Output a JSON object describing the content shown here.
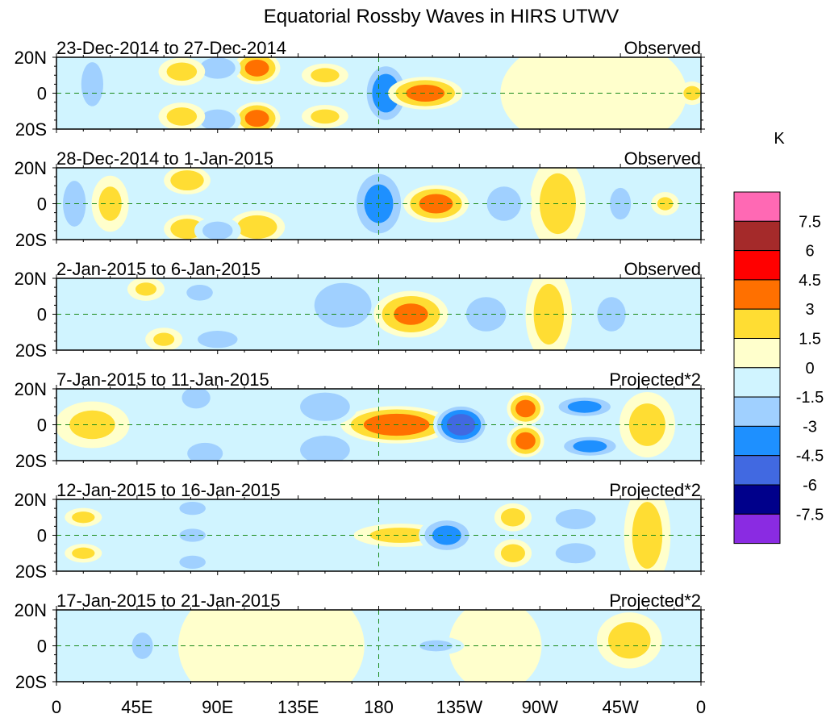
{
  "chart_data": {
    "type": "heatmap",
    "title": "Equatorial Rossby Waves in HIRS UTWV",
    "xlabel": "",
    "ylabel": "",
    "x_ticks": [
      "0",
      "45E",
      "90E",
      "135E",
      "180",
      "135W",
      "90W",
      "45W",
      "0"
    ],
    "x_tick_values": [
      0,
      45,
      90,
      135,
      180,
      225,
      270,
      315,
      360
    ],
    "xlim": [
      0,
      360
    ],
    "y_ticks": [
      "20N",
      "0",
      "20S"
    ],
    "y_tick_values": [
      20,
      0,
      -20
    ],
    "ylim": [
      -20,
      20
    ],
    "reference_lines": {
      "equator_lat": 0,
      "dateline_lon": 180
    },
    "colorbar": {
      "unit": "K",
      "levels": [
        "7.5",
        "6",
        "4.5",
        "3",
        "1.5",
        "0",
        "-1.5",
        "-3",
        "-4.5",
        "-6",
        "-7.5"
      ],
      "colors": [
        "#ff69b4",
        "#a52a2a",
        "#ff0000",
        "#ff7000",
        "#ffdd33",
        "#ffffcc",
        "#d0f4ff",
        "#a0d0ff",
        "#1e90ff",
        "#4169e1",
        "#00008b",
        "#8a2be2"
      ]
    },
    "panels": [
      {
        "date_range": "23-Dec-2014 to 27-Dec-2014",
        "type_label": "Observed",
        "anomalies": [
          {
            "lon": 206,
            "lat": 0,
            "value": 3.5,
            "sx": 16,
            "sy": 7
          },
          {
            "lon": 184,
            "lat": 0,
            "value": -4,
            "sx": 10,
            "sy": 14
          },
          {
            "lon": 112,
            "lat": 14,
            "value": 3.5,
            "sx": 10,
            "sy": 7
          },
          {
            "lon": 112,
            "lat": -14,
            "value": 3.5,
            "sx": 10,
            "sy": 7
          },
          {
            "lon": 90,
            "lat": -15,
            "value": -3,
            "sx": 10,
            "sy": 6
          },
          {
            "lon": 90,
            "lat": 14,
            "value": -3,
            "sx": 10,
            "sy": 6
          },
          {
            "lon": 70,
            "lat": 12,
            "value": 2,
            "sx": 10,
            "sy": 6
          },
          {
            "lon": 70,
            "lat": -13,
            "value": 2,
            "sx": 10,
            "sy": 6
          },
          {
            "lon": 20,
            "lat": 5,
            "value": -1.7,
            "sx": 8,
            "sy": 16
          },
          {
            "lon": 150,
            "lat": 10,
            "value": 1.8,
            "sx": 10,
            "sy": 5
          },
          {
            "lon": 150,
            "lat": -13,
            "value": 1.8,
            "sx": 10,
            "sy": 5
          },
          {
            "lon": 355,
            "lat": 0,
            "value": 1.8,
            "sx": 6,
            "sy": 5
          },
          {
            "lon": 300,
            "lat": 0,
            "value": 0.5,
            "sx": 40,
            "sy": 25
          }
        ]
      },
      {
        "date_range": "28-Dec-2014 to 1-Jan-2015",
        "type_label": "Observed",
        "anomalies": [
          {
            "lon": 212,
            "lat": 0,
            "value": 3.5,
            "sx": 14,
            "sy": 8
          },
          {
            "lon": 180,
            "lat": 0,
            "value": -3.5,
            "sx": 12,
            "sy": 16
          },
          {
            "lon": 280,
            "lat": 0,
            "value": 2,
            "sx": 12,
            "sy": 20
          },
          {
            "lon": 250,
            "lat": 0,
            "value": -1.8,
            "sx": 12,
            "sy": 12
          },
          {
            "lon": 112,
            "lat": -13,
            "value": 2.5,
            "sx": 12,
            "sy": 7
          },
          {
            "lon": 73,
            "lat": 13,
            "value": 2.5,
            "sx": 10,
            "sy": 6
          },
          {
            "lon": 73,
            "lat": -14,
            "value": 2.5,
            "sx": 10,
            "sy": 6
          },
          {
            "lon": 90,
            "lat": -15,
            "value": -2,
            "sx": 10,
            "sy": 6
          },
          {
            "lon": 30,
            "lat": 0,
            "value": 1.8,
            "sx": 8,
            "sy": 12
          },
          {
            "lon": 10,
            "lat": 0,
            "value": -1.8,
            "sx": 8,
            "sy": 16
          },
          {
            "lon": 315,
            "lat": 0,
            "value": -1.6,
            "sx": 8,
            "sy": 12
          },
          {
            "lon": 340,
            "lat": 0,
            "value": 1.6,
            "sx": 6,
            "sy": 5
          }
        ]
      },
      {
        "date_range": "2-Jan-2015 to 6-Jan-2015",
        "type_label": "Observed",
        "anomalies": [
          {
            "lon": 198,
            "lat": 0,
            "value": 3.2,
            "sx": 16,
            "sy": 10
          },
          {
            "lon": 160,
            "lat": 5,
            "value": -2.2,
            "sx": 18,
            "sy": 14
          },
          {
            "lon": 240,
            "lat": 0,
            "value": -1.8,
            "sx": 14,
            "sy": 12
          },
          {
            "lon": 275,
            "lat": 0,
            "value": 2,
            "sx": 10,
            "sy": 20
          },
          {
            "lon": 310,
            "lat": 0,
            "value": -1.8,
            "sx": 10,
            "sy": 12
          },
          {
            "lon": 90,
            "lat": -14,
            "value": -1.8,
            "sx": 14,
            "sy": 6
          },
          {
            "lon": 80,
            "lat": 12,
            "value": -1.6,
            "sx": 10,
            "sy": 6
          },
          {
            "lon": 50,
            "lat": 14,
            "value": 1.6,
            "sx": 8,
            "sy": 5
          },
          {
            "lon": 60,
            "lat": -14,
            "value": 1.6,
            "sx": 8,
            "sy": 5
          }
        ]
      },
      {
        "date_range": "7-Jan-2015 to 11-Jan-2015",
        "type_label": "Projected*2",
        "anomalies": [
          {
            "lon": 190,
            "lat": 0,
            "value": 4,
            "sx": 24,
            "sy": 8
          },
          {
            "lon": 226,
            "lat": 0,
            "value": -5.5,
            "sx": 12,
            "sy": 9
          },
          {
            "lon": 262,
            "lat": 9,
            "value": 3.6,
            "sx": 8,
            "sy": 7
          },
          {
            "lon": 262,
            "lat": -9,
            "value": 3.6,
            "sx": 8,
            "sy": 7
          },
          {
            "lon": 295,
            "lat": 10,
            "value": -3.5,
            "sx": 14,
            "sy": 5
          },
          {
            "lon": 298,
            "lat": -12,
            "value": -3.5,
            "sx": 14,
            "sy": 5
          },
          {
            "lon": 330,
            "lat": 0,
            "value": 2,
            "sx": 12,
            "sy": 14
          },
          {
            "lon": 150,
            "lat": 10,
            "value": -3,
            "sx": 14,
            "sy": 8
          },
          {
            "lon": 150,
            "lat": -14,
            "value": -3,
            "sx": 14,
            "sy": 8
          },
          {
            "lon": 83,
            "lat": -16,
            "value": -3,
            "sx": 10,
            "sy": 6
          },
          {
            "lon": 78,
            "lat": 15,
            "value": -3,
            "sx": 8,
            "sy": 6
          },
          {
            "lon": 20,
            "lat": 0,
            "value": 1.8,
            "sx": 16,
            "sy": 10
          }
        ]
      },
      {
        "date_range": "12-Jan-2015 to 16-Jan-2015",
        "type_label": "Projected*2",
        "anomalies": [
          {
            "lon": 192,
            "lat": 0,
            "value": 2,
            "sx": 20,
            "sy": 5
          },
          {
            "lon": 218,
            "lat": 0,
            "value": -3.5,
            "sx": 12,
            "sy": 8
          },
          {
            "lon": 255,
            "lat": 10,
            "value": 2,
            "sx": 8,
            "sy": 6
          },
          {
            "lon": 255,
            "lat": -10,
            "value": 2,
            "sx": 8,
            "sy": 6
          },
          {
            "lon": 290,
            "lat": 9,
            "value": -2.5,
            "sx": 12,
            "sy": 6
          },
          {
            "lon": 290,
            "lat": -10,
            "value": -2.5,
            "sx": 12,
            "sy": 6
          },
          {
            "lon": 330,
            "lat": 0,
            "value": 2,
            "sx": 10,
            "sy": 22
          },
          {
            "lon": 76,
            "lat": 0,
            "value": -1.6,
            "sx": 10,
            "sy": 5
          },
          {
            "lon": 76,
            "lat": 15,
            "value": -1.6,
            "sx": 10,
            "sy": 5
          },
          {
            "lon": 76,
            "lat": -15,
            "value": -1.6,
            "sx": 10,
            "sy": 5
          },
          {
            "lon": 15,
            "lat": 10,
            "value": 1.8,
            "sx": 8,
            "sy": 4
          },
          {
            "lon": 15,
            "lat": -10,
            "value": 1.8,
            "sx": 8,
            "sy": 4
          }
        ]
      },
      {
        "date_range": "17-Jan-2015 to 21-Jan-2015",
        "type_label": "Projected*2",
        "anomalies": [
          {
            "lon": 212,
            "lat": 0,
            "value": -1.7,
            "sx": 12,
            "sy": 4
          },
          {
            "lon": 320,
            "lat": 3,
            "value": 2,
            "sx": 14,
            "sy": 12
          },
          {
            "lon": 120,
            "lat": 0,
            "value": 0.8,
            "sx": 40,
            "sy": 30
          },
          {
            "lon": 48,
            "lat": 0,
            "value": -1.6,
            "sx": 8,
            "sy": 10
          },
          {
            "lon": 300,
            "lat": 0,
            "value": -0.6,
            "sx": 30,
            "sy": 30
          },
          {
            "lon": 245,
            "lat": 0,
            "value": 0.5,
            "sx": 20,
            "sy": 20
          }
        ]
      }
    ]
  }
}
